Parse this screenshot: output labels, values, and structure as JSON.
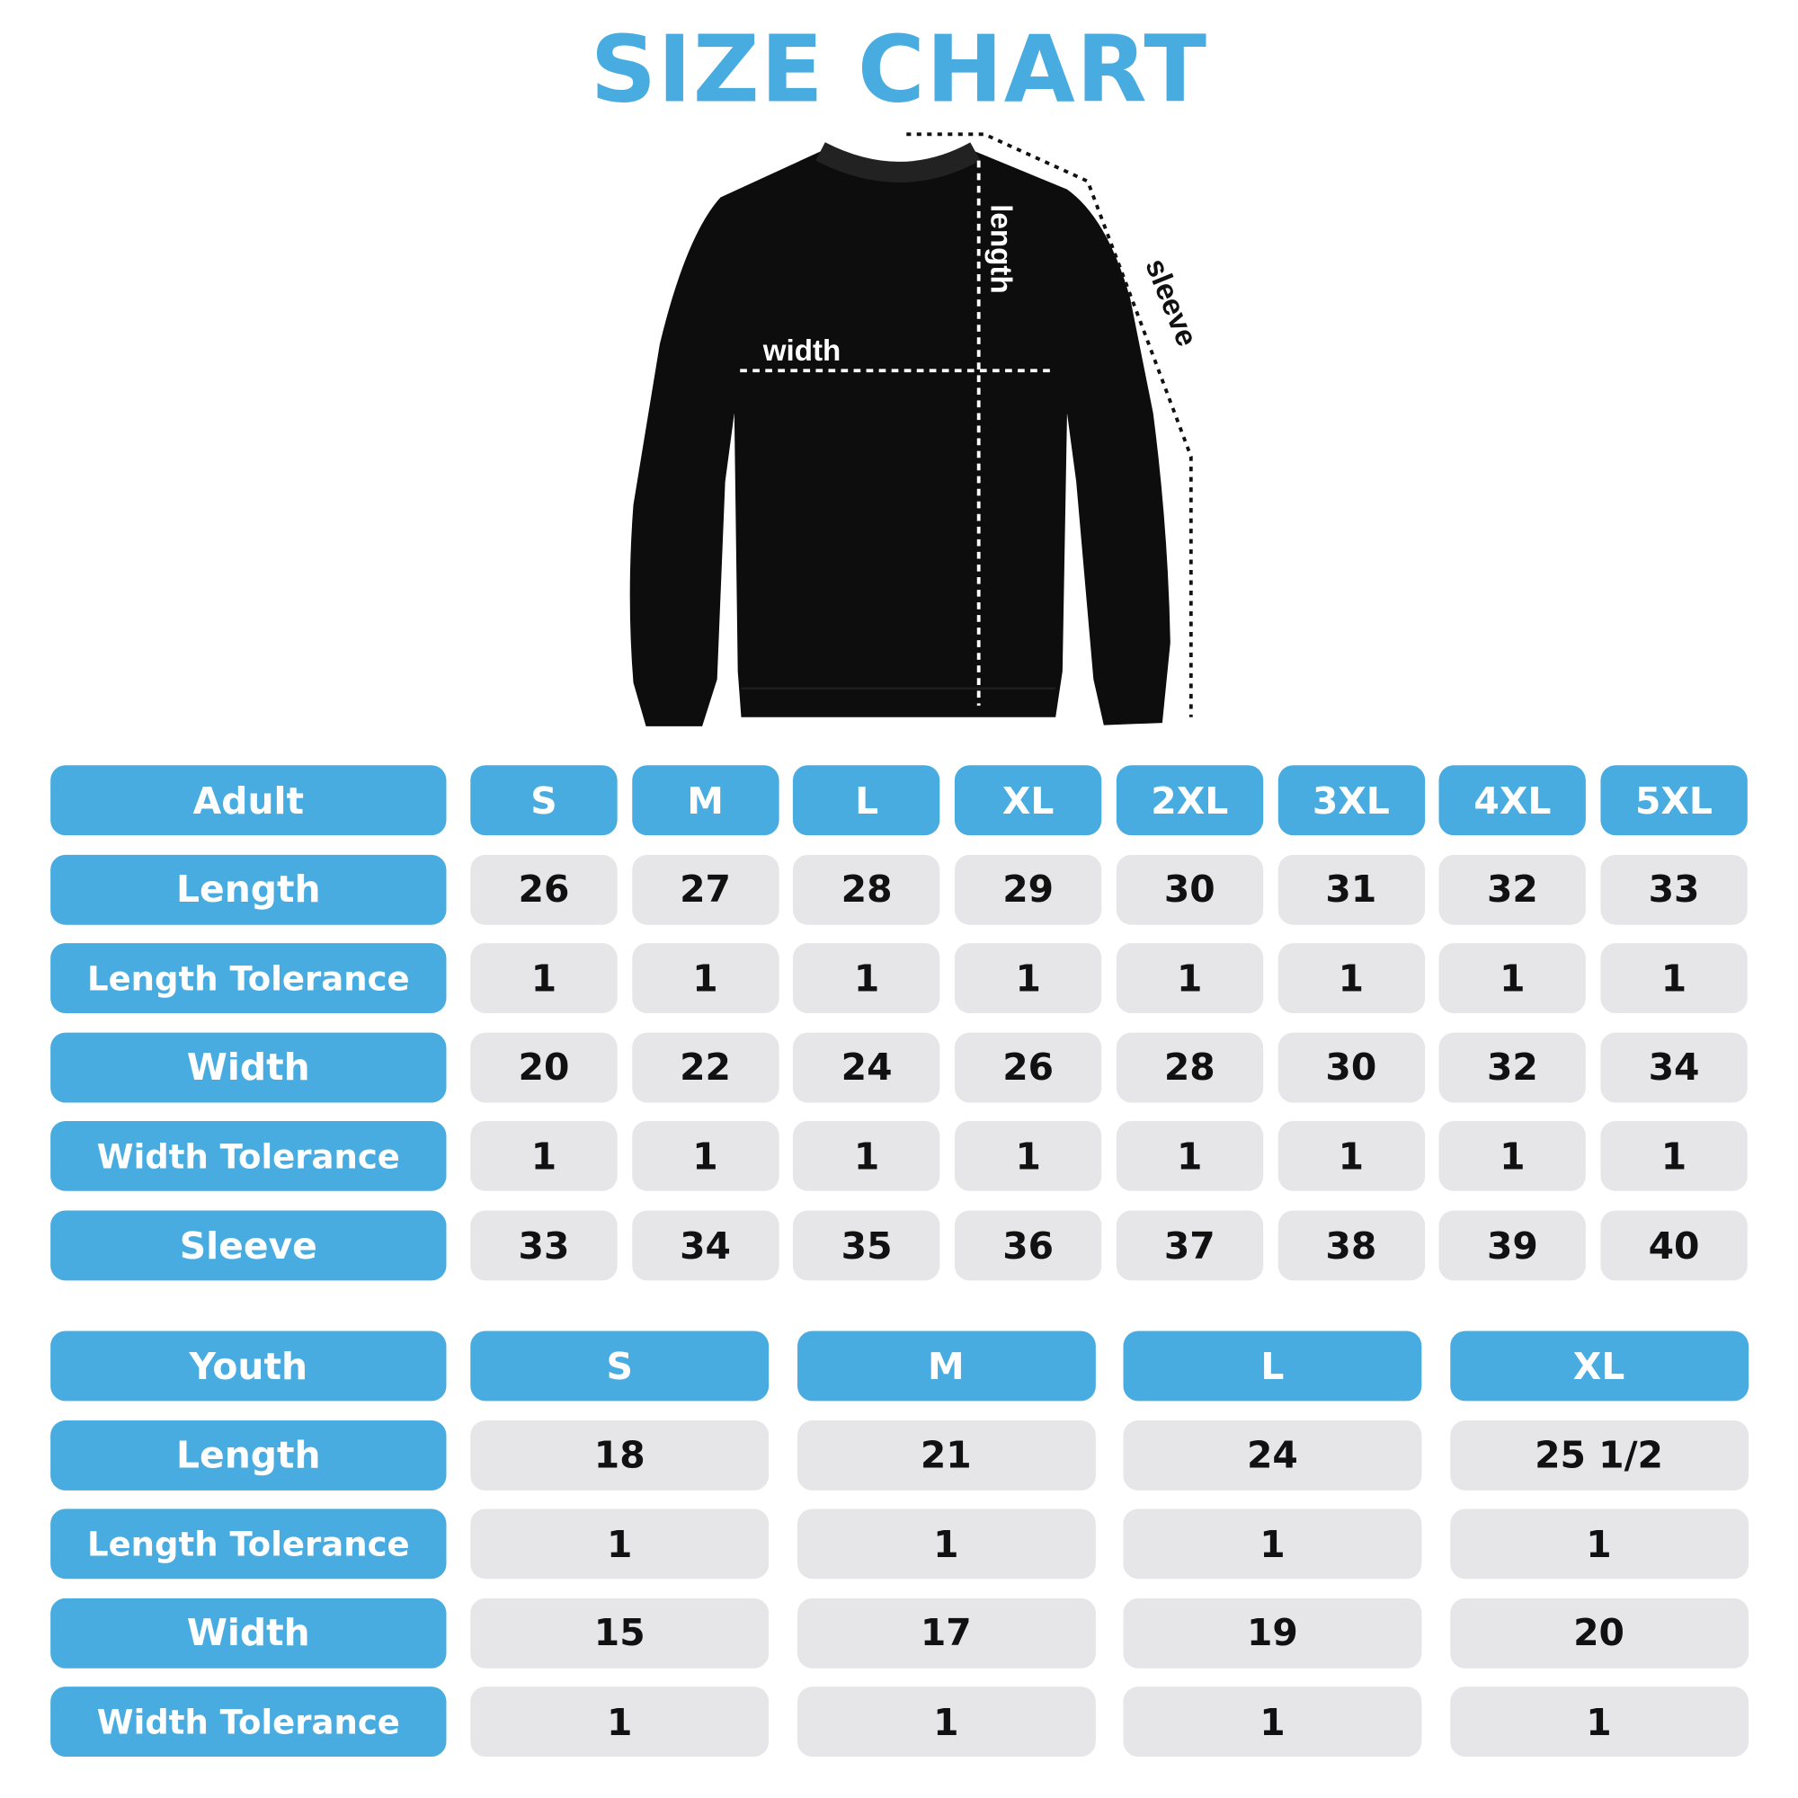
{
  "title": "SIZE CHART",
  "diagram_labels": {
    "width": "width",
    "length": "length",
    "sleeve": "sleeve"
  },
  "colors": {
    "accent": "#49ace0",
    "cell": "#e6e6e8",
    "garment": "#0d0d0d"
  },
  "adult": {
    "header": "Adult",
    "sizes": [
      "S",
      "M",
      "L",
      "XL",
      "2XL",
      "3XL",
      "4XL",
      "5XL"
    ],
    "rows": [
      {
        "label": "Length",
        "values": [
          "26",
          "27",
          "28",
          "29",
          "30",
          "31",
          "32",
          "33"
        ]
      },
      {
        "label": "Length Tolerance",
        "values": [
          "1",
          "1",
          "1",
          "1",
          "1",
          "1",
          "1",
          "1"
        ]
      },
      {
        "label": "Width",
        "values": [
          "20",
          "22",
          "24",
          "26",
          "28",
          "30",
          "32",
          "34"
        ]
      },
      {
        "label": "Width Tolerance",
        "values": [
          "1",
          "1",
          "1",
          "1",
          "1",
          "1",
          "1",
          "1"
        ]
      },
      {
        "label": "Sleeve",
        "values": [
          "33",
          "34",
          "35",
          "36",
          "37",
          "38",
          "39",
          "40"
        ]
      }
    ]
  },
  "youth": {
    "header": "Youth",
    "sizes": [
      "S",
      "M",
      "L",
      "XL"
    ],
    "rows": [
      {
        "label": "Length",
        "values": [
          "18",
          "21",
          "24",
          "25 1/2"
        ]
      },
      {
        "label": "Length Tolerance",
        "values": [
          "1",
          "1",
          "1",
          "1"
        ]
      },
      {
        "label": "Width",
        "values": [
          "15",
          "17",
          "19",
          "20"
        ]
      },
      {
        "label": "Width Tolerance",
        "values": [
          "1",
          "1",
          "1",
          "1"
        ]
      }
    ]
  }
}
